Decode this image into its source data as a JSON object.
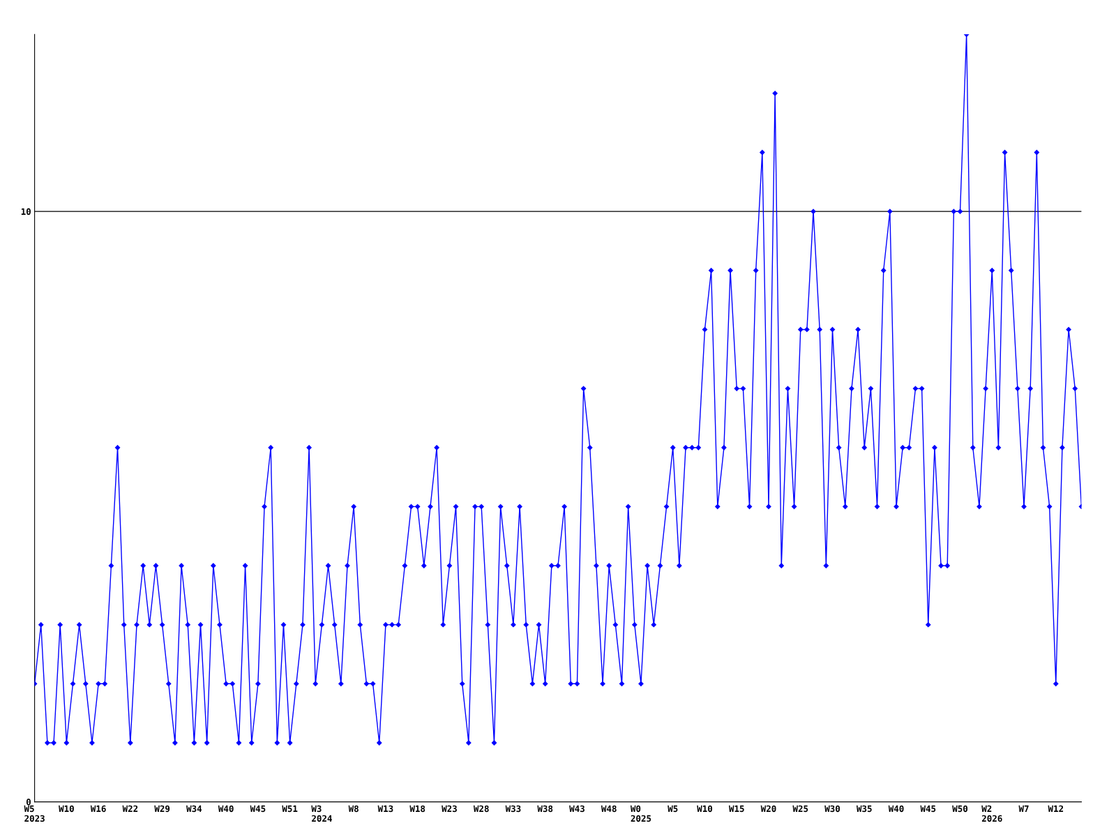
{
  "chart_data": {
    "type": "line",
    "categories": [
      "W5\n2023",
      null,
      null,
      null,
      null,
      "W10",
      null,
      null,
      null,
      null,
      "W16",
      null,
      null,
      null,
      null,
      "W22",
      null,
      null,
      null,
      null,
      "W29",
      null,
      null,
      null,
      null,
      "W34",
      null,
      null,
      null,
      null,
      "W40",
      null,
      null,
      null,
      null,
      "W45",
      null,
      null,
      null,
      null,
      "W51",
      null,
      null,
      null,
      null,
      "W3\n2024",
      null,
      null,
      null,
      null,
      "W8",
      null,
      null,
      null,
      null,
      "W13",
      null,
      null,
      null,
      null,
      "W18",
      null,
      null,
      null,
      null,
      "W23",
      null,
      null,
      null,
      null,
      "W28",
      null,
      null,
      null,
      null,
      "W33",
      null,
      null,
      null,
      null,
      "W38",
      null,
      null,
      null,
      null,
      "W43",
      null,
      null,
      null,
      null,
      "W48",
      null,
      null,
      null,
      null,
      "W0\n2025",
      null,
      null,
      null,
      null,
      "W5",
      null,
      null,
      null,
      null,
      "W10",
      null,
      null,
      null,
      null,
      "W15",
      null,
      null,
      null,
      null,
      "W20",
      null,
      null,
      null,
      null,
      "W25",
      null,
      null,
      null,
      null,
      "W30",
      null,
      null,
      null,
      null,
      "W35",
      null,
      null,
      null,
      null,
      "W40",
      null,
      null,
      null,
      null,
      "W45",
      null,
      null,
      null,
      null,
      "W50",
      null,
      null,
      null,
      null,
      "W2\n2026",
      null,
      null,
      null,
      null,
      "W7",
      null,
      null,
      null,
      null,
      "W12",
      null,
      null,
      null,
      null
    ],
    "series": [
      {
        "color": "#0000ff",
        "values": [
          2,
          3,
          1,
          1,
          3,
          1,
          2,
          3,
          2,
          1,
          2,
          2,
          4,
          6,
          3,
          1,
          3,
          4,
          3,
          4,
          3,
          2,
          1,
          4,
          3,
          1,
          3,
          1,
          4,
          3,
          2,
          2,
          1,
          4,
          1,
          2,
          5,
          6,
          1,
          3,
          1,
          2,
          3,
          6,
          2,
          3,
          4,
          3,
          2,
          4,
          5,
          3,
          2,
          2,
          1,
          3,
          3,
          3,
          4,
          5,
          5,
          4,
          5,
          6,
          3,
          4,
          5,
          2,
          1,
          5,
          5,
          3,
          1,
          5,
          4,
          3,
          5,
          3,
          2,
          3,
          2,
          4,
          4,
          5,
          2,
          2,
          7,
          6,
          4,
          2,
          4,
          3,
          2,
          5,
          3,
          2,
          4,
          3,
          4,
          5,
          6,
          4,
          6,
          6,
          6,
          8,
          9,
          5,
          6,
          9,
          7,
          7,
          5,
          9,
          11,
          5,
          12,
          4,
          7,
          5,
          8,
          8,
          10,
          8,
          4,
          8,
          6,
          5,
          7,
          8,
          6,
          7,
          5,
          9,
          10,
          5,
          6,
          6,
          7,
          7,
          3,
          6,
          4,
          4,
          10,
          10,
          13,
          6,
          5,
          7,
          9,
          6,
          11,
          9,
          7,
          5,
          7,
          11,
          6,
          5,
          2,
          6,
          8,
          7,
          5
        ]
      }
    ],
    "ylim": [
      0,
      13
    ],
    "yticks": [
      0,
      10
    ],
    "grid": "y",
    "marker": "diamond",
    "line_style": "solid"
  }
}
